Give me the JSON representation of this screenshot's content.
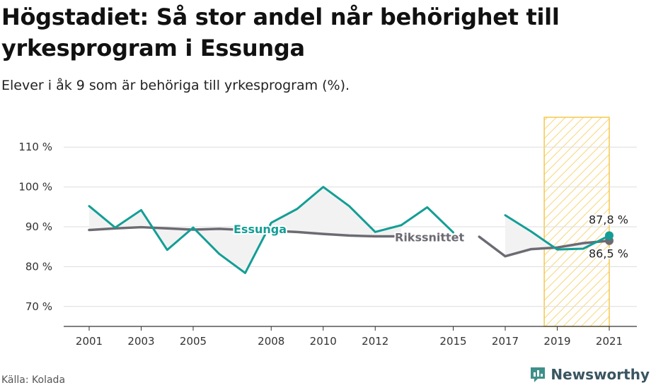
{
  "header": {
    "title": "Högstadiet: Så stor andel når behörighet till yrkesprogram i Essunga",
    "subtitle": "Elever i åk 9 som är behöriga till yrkesprogram (%)."
  },
  "footer": {
    "source": "Källa: Kolada",
    "brand": "Newsworthy"
  },
  "colors": {
    "essunga": "#139e95",
    "riks": "#6c6b73",
    "highlight": "#f5c84b",
    "grid": "#dddddd",
    "area": "#f2f2f2"
  },
  "chart_data": {
    "type": "line",
    "ylim": [
      65,
      115
    ],
    "yticks": [
      70,
      80,
      90,
      100,
      110
    ],
    "ytick_labels": [
      "70 %",
      "80 %",
      "90 %",
      "100 %",
      "110 %"
    ],
    "xlim": [
      2000,
      2021.5
    ],
    "xticks": [
      2001,
      2003,
      2005,
      2008,
      2010,
      2012,
      2015,
      2017,
      2019,
      2021
    ],
    "highlight_range": [
      2018.5,
      2021
    ],
    "series": [
      {
        "name": "Essunga",
        "color": "#139e95",
        "x": [
          2001,
          2002,
          2003,
          2004,
          2005,
          2006,
          2007,
          2008,
          2009,
          2010,
          2011,
          2012,
          2013,
          2014,
          2015,
          2016,
          2017,
          2018,
          2019,
          2020,
          2021
        ],
        "values": [
          95.2,
          89.8,
          94.2,
          84.2,
          89.8,
          83.2,
          78.4,
          91.0,
          94.5,
          100.0,
          95.2,
          88.7,
          90.4,
          94.9,
          88.6,
          null,
          92.9,
          88.8,
          84.3,
          84.5,
          87.8
        ],
        "end_label": "87,8 %"
      },
      {
        "name": "Rikssnittet",
        "color": "#6c6b73",
        "x": [
          2001,
          2002,
          2003,
          2004,
          2005,
          2006,
          2007,
          2008,
          2009,
          2010,
          2011,
          2012,
          2013,
          2014,
          2015,
          2016,
          2017,
          2018,
          2019,
          2020,
          2021
        ],
        "values": [
          89.2,
          89.6,
          89.9,
          89.6,
          89.3,
          89.5,
          89.2,
          89.0,
          88.7,
          88.2,
          87.8,
          87.6,
          87.6,
          null,
          null,
          87.5,
          82.6,
          84.4,
          84.8,
          85.9,
          86.5
        ],
        "end_label": "86,5 %"
      }
    ]
  }
}
